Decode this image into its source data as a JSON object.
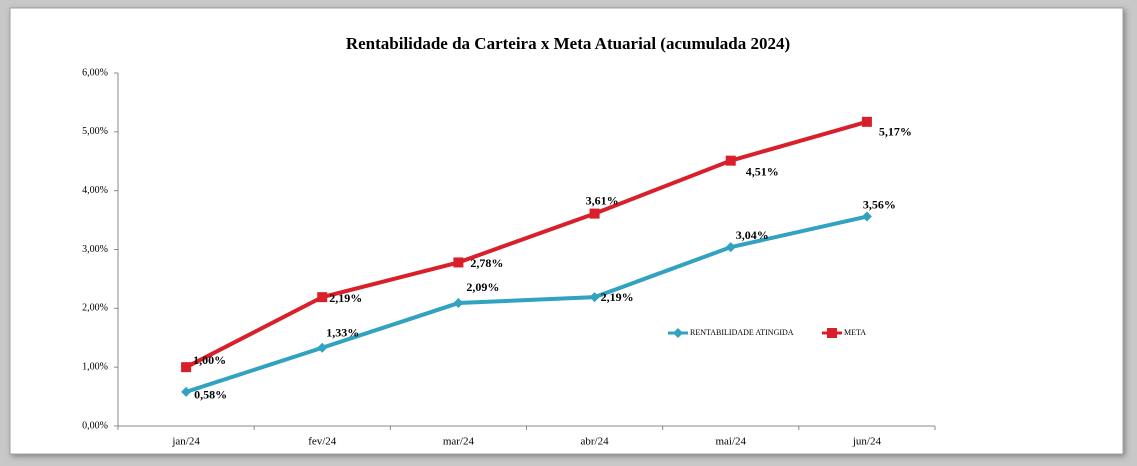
{
  "chart_data": {
    "type": "line",
    "title": "Rentabilidade  da  Carteira  x  Meta Atuarial  (acumulada  2024)",
    "categories": [
      "jan/24",
      "fev/24",
      "mar/24",
      "abr/24",
      "mai/24",
      "jun/24"
    ],
    "series": [
      {
        "name": "RENTABILIDADE ATINGIDA",
        "color": "#31a2c0",
        "marker": "diamond",
        "values": [
          0.58,
          1.33,
          2.09,
          2.19,
          3.04,
          3.56
        ],
        "value_labels": [
          "0,58%",
          "1,33%",
          "2,09%",
          "2,19%",
          "3,04%",
          "3,56%"
        ]
      },
      {
        "name": "META",
        "color": "#d9202a",
        "marker": "square",
        "values": [
          1.0,
          2.19,
          2.78,
          3.61,
          4.51,
          5.17
        ],
        "value_labels": [
          "1,00%",
          "2,19%",
          "2,78%",
          "3,61%",
          "4,51%",
          "5,17%"
        ]
      }
    ],
    "ylim": [
      0,
      6
    ],
    "yticks": [
      {
        "value": 0,
        "label": "0,00%"
      },
      {
        "value": 1,
        "label": "1,00%"
      },
      {
        "value": 2,
        "label": "2,00%"
      },
      {
        "value": 3,
        "label": "3,00%"
      },
      {
        "value": 4,
        "label": "4,00%"
      },
      {
        "value": 5,
        "label": "5,00%"
      },
      {
        "value": 6,
        "label": "6,00%"
      }
    ],
    "grid": false
  }
}
